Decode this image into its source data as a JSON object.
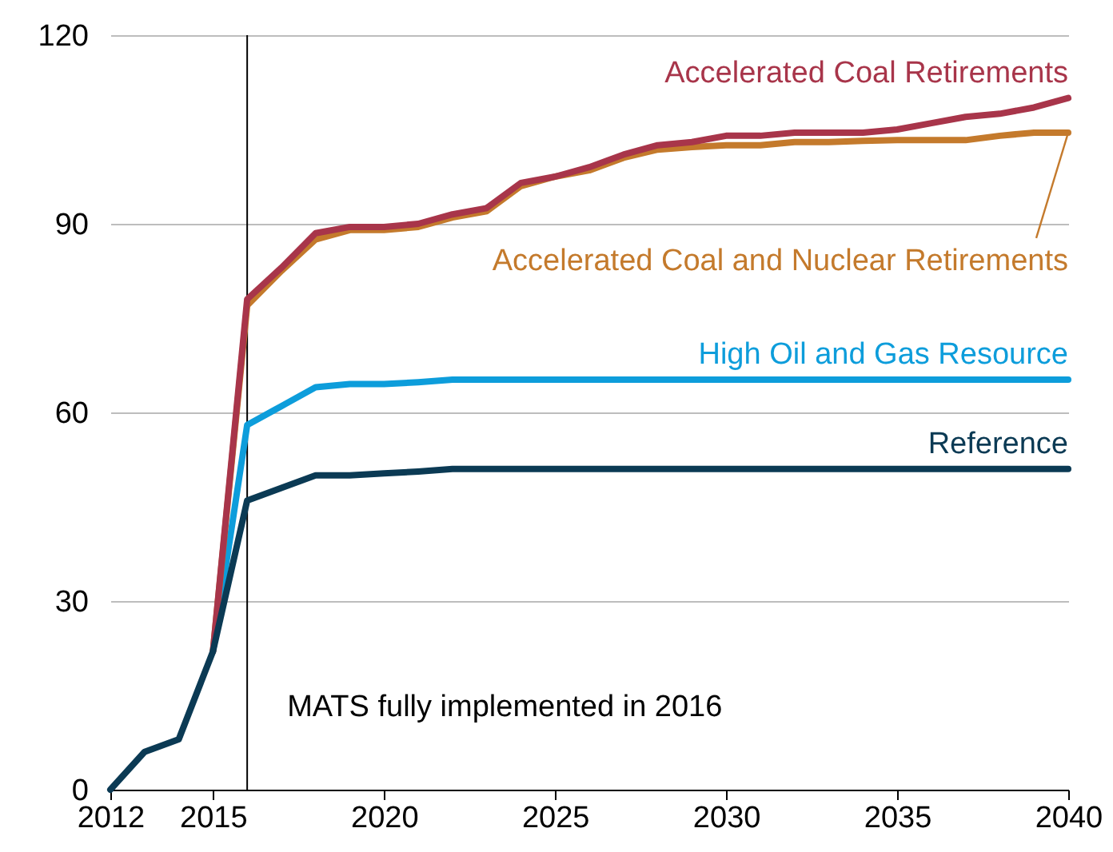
{
  "chart_data": {
    "type": "line",
    "x": [
      2012,
      2013,
      2014,
      2015,
      2016,
      2017,
      2018,
      2019,
      2020,
      2021,
      2022,
      2023,
      2024,
      2025,
      2026,
      2027,
      2028,
      2029,
      2030,
      2031,
      2032,
      2033,
      2034,
      2035,
      2036,
      2037,
      2038,
      2039,
      2040
    ],
    "series": [
      {
        "name": "Accelerated Coal Retirements",
        "color": "#a8354a",
        "values": [
          null,
          null,
          null,
          22,
          78,
          83,
          88.5,
          89.5,
          89.5,
          90,
          91.5,
          92.5,
          96.5,
          97.5,
          99,
          101,
          102.5,
          103,
          104,
          104,
          104.5,
          104.5,
          104.5,
          105,
          106,
          107,
          107.5,
          108.5,
          110
        ]
      },
      {
        "name": "Accelerated Coal and Nuclear Retirements",
        "color": "#c47a2c",
        "values": [
          null,
          null,
          null,
          22,
          77,
          82.5,
          87.5,
          89,
          89,
          89.5,
          91,
          92,
          96,
          97.5,
          98.5,
          100.5,
          101.8,
          102.2,
          102.5,
          102.5,
          103,
          103,
          103.2,
          103.3,
          103.3,
          103.3,
          104,
          104.5,
          104.5
        ]
      },
      {
        "name": "High Oil and Gas Resource",
        "color": "#0d9ddb",
        "values": [
          null,
          null,
          null,
          22,
          58,
          61,
          64,
          64.5,
          64.5,
          64.8,
          65.2,
          65.2,
          65.2,
          65.2,
          65.2,
          65.2,
          65.2,
          65.2,
          65.2,
          65.2,
          65.2,
          65.2,
          65.2,
          65.2,
          65.2,
          65.2,
          65.2,
          65.2,
          65.2
        ]
      },
      {
        "name": "Reference",
        "color": "#0b3a54",
        "values": [
          0,
          6,
          8,
          22,
          46,
          48,
          50,
          50,
          50.3,
          50.6,
          51,
          51,
          51,
          51,
          51,
          51,
          51,
          51,
          51,
          51,
          51,
          51,
          51,
          51,
          51,
          51,
          51,
          51,
          51
        ]
      }
    ],
    "xlim": [
      2012,
      2040
    ],
    "xticks": [
      2012,
      2015,
      2020,
      2025,
      2030,
      2035,
      2040
    ],
    "ylim": [
      0,
      120
    ],
    "yticks": [
      0,
      30,
      60,
      90,
      120
    ],
    "grid": "y",
    "legend": false,
    "marker": "none",
    "line_style": "solid",
    "ref_lines": [
      {
        "axis": "x",
        "value": 2016,
        "label": "MATS fully implemented in 2016",
        "color": "#000000"
      }
    ]
  }
}
